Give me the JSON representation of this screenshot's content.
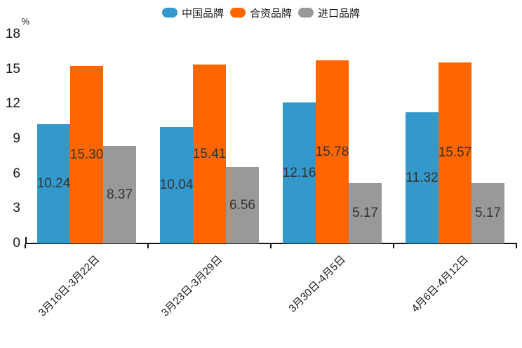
{
  "chart_data": {
    "type": "bar",
    "title": "",
    "unit_label": "%",
    "categories": [
      "3月16日-3月22日",
      "3月23日-3月29日",
      "3月30日-4月5日",
      "4月6日-4月12日"
    ],
    "series": [
      {
        "name": "中国品牌",
        "color": "#3398CC",
        "values": [
          10.24,
          10.04,
          12.16,
          11.32
        ]
      },
      {
        "name": "合资品牌",
        "color": "#FF6600",
        "values": [
          15.3,
          15.41,
          15.78,
          15.57
        ]
      },
      {
        "name": "进口品牌",
        "color": "#999999",
        "values": [
          8.37,
          6.56,
          5.17,
          5.17
        ]
      }
    ],
    "value_label_decimals": 2,
    "y_ticks": [
      0,
      3,
      6,
      9,
      12,
      15,
      18
    ],
    "ylim": [
      0,
      18
    ],
    "legend_position": "top",
    "grid": false,
    "axis_color": "#111111",
    "value_label_color": "#333333"
  }
}
